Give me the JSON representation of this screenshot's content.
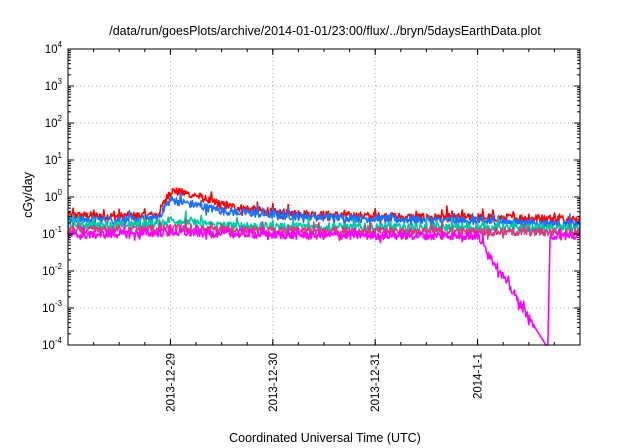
{
  "chart_data": {
    "type": "line",
    "title": "/data/run/goesPlots/archive/2014-01-01/23:00/flux/../bryn/5daysEarthData.plot",
    "xlabel": "Coordinated Universal Time (UTC)",
    "ylabel": "cGy/day",
    "yscale": "log",
    "ylim": [
      0.0001,
      10000
    ],
    "xlim": [
      "2013-12-28 00:00",
      "2014-01-02 00:00"
    ],
    "grid": "dotted",
    "legend": "none",
    "x_ticks": [
      "2013-12-29",
      "2013-12-30",
      "2013-12-31",
      "2014-1-1"
    ],
    "y_ticks": [
      {
        "base": "10",
        "exp": "-4"
      },
      {
        "base": "10",
        "exp": "-3"
      },
      {
        "base": "10",
        "exp": "-2"
      },
      {
        "base": "10",
        "exp": "-1"
      },
      {
        "base": "10",
        "exp": "0"
      },
      {
        "base": "10",
        "exp": "1"
      },
      {
        "base": "10",
        "exp": "2"
      },
      {
        "base": "10",
        "exp": "3"
      },
      {
        "base": "10",
        "exp": "4"
      }
    ],
    "series": [
      {
        "color": "#ff0000",
        "x": [
          "2013-12-28 00:00",
          "2013-12-28 12:00",
          "2013-12-28 21:00",
          "2013-12-29 00:00",
          "2013-12-29 06:00",
          "2013-12-29 12:00",
          "2013-12-30 00:00",
          "2013-12-30 12:00",
          "2013-12-31 00:00",
          "2013-12-31 12:00",
          "2014-01-01 00:00",
          "2014-01-01 12:00",
          "2014-01-02 00:00"
        ],
        "values": [
          0.32,
          0.3,
          0.32,
          1.5,
          1.1,
          0.6,
          0.38,
          0.33,
          0.3,
          0.28,
          0.28,
          0.27,
          0.25
        ]
      },
      {
        "color": "#1a6fff",
        "x": [
          "2013-12-28 00:00",
          "2013-12-28 12:00",
          "2013-12-28 21:00",
          "2013-12-29 00:00",
          "2013-12-29 06:00",
          "2013-12-29 12:00",
          "2013-12-30 00:00",
          "2013-12-30 12:00",
          "2013-12-31 00:00",
          "2013-12-31 12:00",
          "2014-01-01 00:00",
          "2014-01-01 12:00",
          "2014-01-02 00:00"
        ],
        "values": [
          0.25,
          0.24,
          0.26,
          0.85,
          0.6,
          0.42,
          0.33,
          0.28,
          0.26,
          0.24,
          0.22,
          0.2,
          0.18
        ]
      },
      {
        "color": "#00c8a0",
        "x": [
          "2013-12-28 00:00",
          "2013-12-28 12:00",
          "2013-12-28 21:00",
          "2013-12-29 00:00",
          "2013-12-29 12:00",
          "2013-12-30 00:00",
          "2013-12-31 00:00",
          "2014-01-01 00:00",
          "2014-01-02 00:00"
        ],
        "values": [
          0.18,
          0.17,
          0.19,
          0.24,
          0.17,
          0.16,
          0.15,
          0.15,
          0.14
        ]
      },
      {
        "color": "#d04080",
        "x": [
          "2013-12-28 00:00",
          "2013-12-29 00:00",
          "2013-12-30 00:00",
          "2013-12-31 00:00",
          "2014-01-01 00:00",
          "2014-01-02 00:00"
        ],
        "values": [
          0.12,
          0.14,
          0.12,
          0.12,
          0.115,
          0.11
        ]
      },
      {
        "color": "#ff00ff",
        "x": [
          "2013-12-28 00:00",
          "2013-12-29 00:00",
          "2013-12-30 00:00",
          "2013-12-31 00:00",
          "2014-01-01 00:00",
          "2014-01-01 16:00",
          "2014-01-01 16:30",
          "2014-01-01 17:00",
          "2014-01-02 00:00"
        ],
        "values": [
          0.09,
          0.11,
          0.095,
          0.09,
          0.09,
          0.0001,
          0.0001,
          0.09,
          0.085
        ]
      }
    ]
  }
}
